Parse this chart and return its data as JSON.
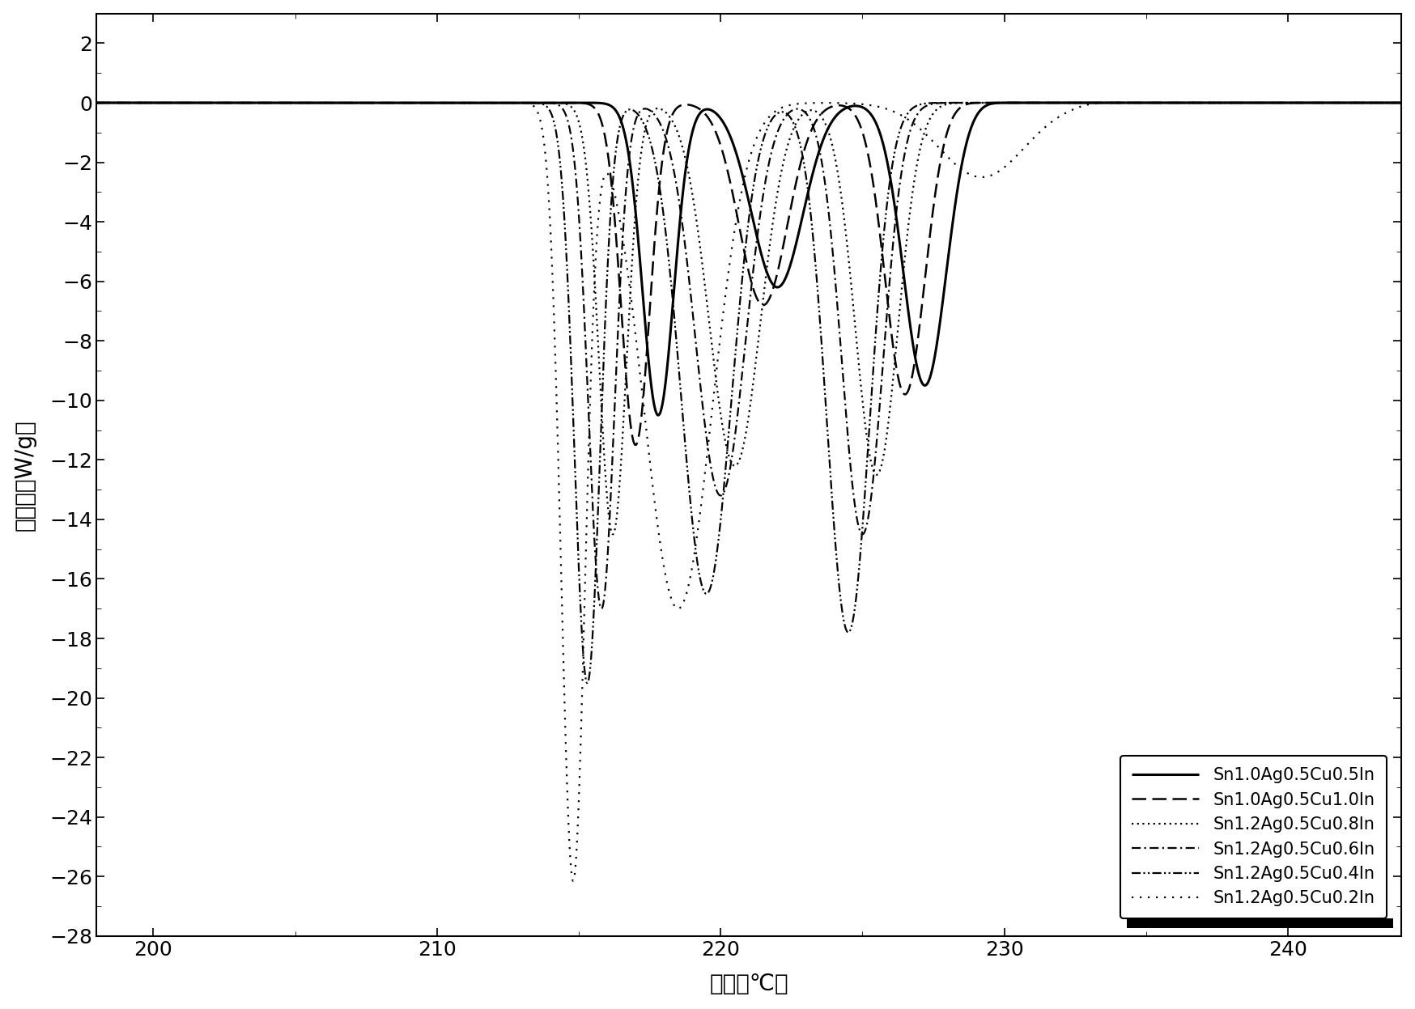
{
  "xlabel": "温度（℃）",
  "ylabel": "热流量（W/g）",
  "xlim": [
    198,
    244
  ],
  "ylim": [
    -28,
    3
  ],
  "yticks": [
    2,
    0,
    -2,
    -4,
    -6,
    -8,
    -10,
    -12,
    -14,
    -16,
    -18,
    -20,
    -22,
    -24,
    -26,
    -28
  ],
  "xticks": [
    200,
    210,
    220,
    230,
    240
  ],
  "background_color": "#ffffff",
  "figsize": [
    17.48,
    12.47
  ],
  "dpi": 100,
  "series": [
    {
      "label": "Sn1.0Ag0.5Cu0.5In",
      "linestyle": "solid",
      "linewidth": 2.2,
      "color": "#000000",
      "onset": 213.5,
      "p1_x": 217.8,
      "p1_y": -10.5,
      "p1_s": 0.55,
      "p2_x": 222.0,
      "p2_y": -6.2,
      "p2_s": 0.9,
      "p3_x": 227.2,
      "p3_y": -9.5,
      "p3_s": 0.75,
      "end": 229.5
    },
    {
      "label": "Sn1.0Ag0.5Cu1.0In",
      "linestyle": "dashed",
      "linewidth": 1.8,
      "color": "#000000",
      "onset": 212.8,
      "p1_x": 217.0,
      "p1_y": -11.5,
      "p1_s": 0.5,
      "p2_x": 221.5,
      "p2_y": -6.8,
      "p2_s": 0.85,
      "p3_x": 226.5,
      "p3_y": -9.8,
      "p3_s": 0.7,
      "end": 228.8
    },
    {
      "label": "Sn1.2Ag0.5Cu0.8In",
      "linestyle": "dotted",
      "linewidth": 1.6,
      "color": "#000000",
      "onset": 212.0,
      "p1_x": 216.2,
      "p1_y": -14.5,
      "p1_s": 0.48,
      "p2_x": 220.5,
      "p2_y": -12.2,
      "p2_s": 0.9,
      "p3_x": 225.5,
      "p3_y": -12.5,
      "p3_s": 0.75,
      "end": 228.5
    },
    {
      "label": "Sn1.2Ag0.5Cu0.6In",
      "linestyle": "dashdot",
      "linewidth": 1.6,
      "color": "#000000",
      "onset": 211.5,
      "p1_x": 215.8,
      "p1_y": -17.0,
      "p1_s": 0.46,
      "p2_x": 220.0,
      "p2_y": -13.2,
      "p2_s": 0.88,
      "p3_x": 225.0,
      "p3_y": -14.5,
      "p3_s": 0.72,
      "end": 228.0
    },
    {
      "label": "Sn1.2Ag0.5Cu0.4In",
      "linestyle": "dashdotdotted",
      "linewidth": 1.6,
      "color": "#000000",
      "onset": 211.0,
      "p1_x": 215.3,
      "p1_y": -19.5,
      "p1_s": 0.45,
      "p2_x": 219.5,
      "p2_y": -16.5,
      "p2_s": 0.88,
      "p3_x": 224.5,
      "p3_y": -17.8,
      "p3_s": 0.75,
      "end": 228.0
    },
    {
      "label": "Sn1.2Ag0.5Cu0.2In",
      "linestyle": "loosely dotted",
      "linewidth": 1.6,
      "color": "#000000",
      "onset": 210.5,
      "p1_x": 214.8,
      "p1_y": -26.0,
      "p1_s": 0.42,
      "p2_x": 218.5,
      "p2_y": -17.0,
      "p2_s": 1.2,
      "p3_x": 229.2,
      "p3_y": -2.5,
      "p3_s": 1.5,
      "end": 233.0
    }
  ]
}
